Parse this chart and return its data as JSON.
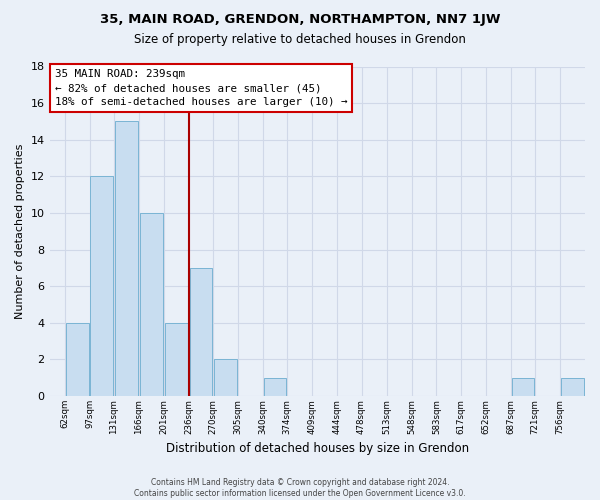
{
  "title": "35, MAIN ROAD, GRENDON, NORTHAMPTON, NN7 1JW",
  "subtitle": "Size of property relative to detached houses in Grendon",
  "xlabel": "Distribution of detached houses by size in Grendon",
  "ylabel": "Number of detached properties",
  "bin_labels": [
    "62sqm",
    "97sqm",
    "131sqm",
    "166sqm",
    "201sqm",
    "236sqm",
    "270sqm",
    "305sqm",
    "340sqm",
    "374sqm",
    "409sqm",
    "444sqm",
    "478sqm",
    "513sqm",
    "548sqm",
    "583sqm",
    "617sqm",
    "652sqm",
    "687sqm",
    "721sqm",
    "756sqm"
  ],
  "values": [
    4,
    12,
    15,
    10,
    4,
    7,
    2,
    0,
    1,
    0,
    0,
    0,
    0,
    0,
    0,
    0,
    0,
    0,
    1,
    0,
    1
  ],
  "bar_color": "#c8ddf0",
  "bar_edge_color": "#7ab4d4",
  "grid_color": "#d0d8e8",
  "background_color": "#eaf0f8",
  "annotation_box_line1": "35 MAIN ROAD: 239sqm",
  "annotation_box_line2": "← 82% of detached houses are smaller (45)",
  "annotation_box_line3": "18% of semi-detached houses are larger (10) →",
  "property_line_color": "#aa0000",
  "ylim": [
    0,
    18
  ],
  "yticks": [
    0,
    2,
    4,
    6,
    8,
    10,
    12,
    14,
    16,
    18
  ],
  "footnote": "Contains HM Land Registry data © Crown copyright and database right 2024.\nContains public sector information licensed under the Open Government Licence v3.0.",
  "bin_edges_numeric": [
    62,
    97,
    131,
    166,
    201,
    236,
    270,
    305,
    340,
    374,
    409,
    444,
    478,
    513,
    548,
    583,
    617,
    652,
    687,
    721,
    756
  ]
}
